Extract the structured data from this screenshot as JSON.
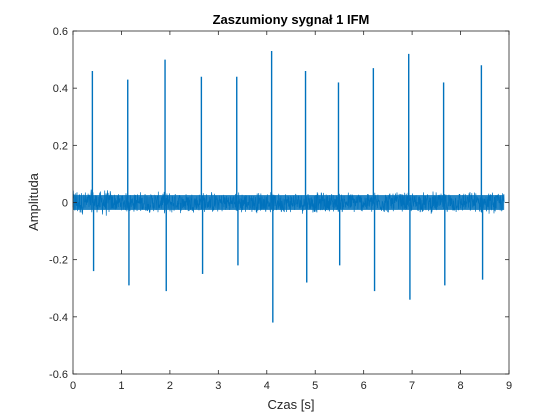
{
  "chart_data": {
    "type": "line",
    "title": "Zaszumiony sygnał 1 IFM",
    "xlabel": "Czas [s]",
    "ylabel": "Amplituda",
    "xlim": [
      0,
      9
    ],
    "ylim": [
      -0.6,
      0.6
    ],
    "xticks": [
      "0",
      "1",
      "2",
      "3",
      "4",
      "5",
      "6",
      "7",
      "8",
      "9"
    ],
    "yticks": [
      "-0.6",
      "-0.4",
      "-0.2",
      "0",
      "0.2",
      "0.4",
      "0.6"
    ],
    "grid": false,
    "series_color": "#0072BD",
    "signal_extent": [
      0,
      8.9
    ],
    "noise_amplitude": 0.04,
    "spikes": [
      {
        "t": 0.4,
        "max": 0.46,
        "min": -0.24
      },
      {
        "t": 1.13,
        "max": 0.43,
        "min": -0.29
      },
      {
        "t": 1.9,
        "max": 0.5,
        "min": -0.31
      },
      {
        "t": 2.65,
        "max": 0.44,
        "min": -0.25
      },
      {
        "t": 3.38,
        "max": 0.44,
        "min": -0.22
      },
      {
        "t": 4.1,
        "max": 0.53,
        "min": -0.42
      },
      {
        "t": 4.8,
        "max": 0.46,
        "min": -0.28
      },
      {
        "t": 5.48,
        "max": 0.42,
        "min": -0.22
      },
      {
        "t": 6.2,
        "max": 0.47,
        "min": -0.31
      },
      {
        "t": 6.93,
        "max": 0.52,
        "min": -0.34
      },
      {
        "t": 7.65,
        "max": 0.42,
        "min": -0.29
      },
      {
        "t": 8.43,
        "max": 0.48,
        "min": -0.27
      }
    ]
  }
}
